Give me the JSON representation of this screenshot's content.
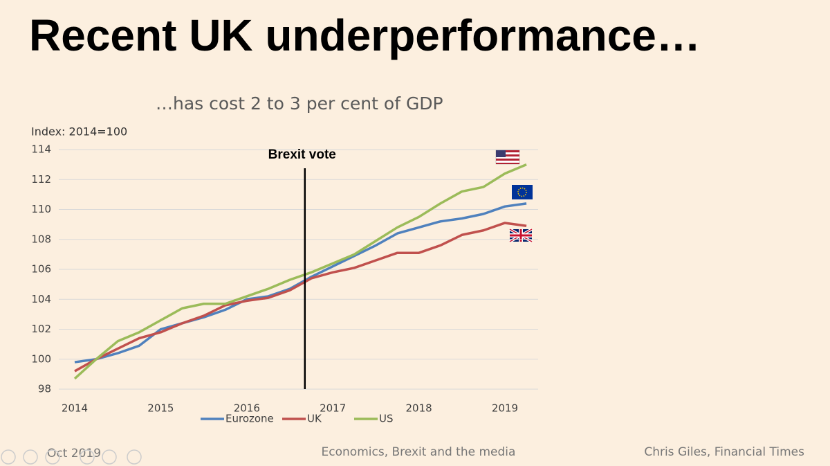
{
  "slide": {
    "title": "Recent UK underperformance…",
    "footer_left": "Oct 2019",
    "footer_center": "Economics, Brexit and the media",
    "footer_right": "Chris Giles, Financial Times"
  },
  "chart_data": {
    "type": "line",
    "title": "…has cost 2 to 3 per cent of GDP",
    "y_label": "Index: 2014=100",
    "categories": [
      "2014",
      null,
      null,
      null,
      "2015",
      null,
      null,
      null,
      "2016",
      null,
      null,
      null,
      "2017",
      null,
      null,
      null,
      "2018",
      null,
      null,
      null,
      "2019",
      null
    ],
    "series": [
      {
        "name": "Eurozone",
        "color": "#4f81bd",
        "values": [
          99.8,
          100.0,
          100.4,
          100.9,
          102.0,
          102.4,
          102.8,
          103.3,
          104.0,
          104.2,
          104.7,
          105.5,
          106.2,
          106.9,
          107.6,
          108.4,
          108.8,
          109.2,
          109.4,
          109.7,
          110.2,
          110.4
        ]
      },
      {
        "name": "UK",
        "color": "#c0504d",
        "values": [
          99.2,
          100.0,
          100.7,
          101.4,
          101.8,
          102.4,
          102.9,
          103.6,
          103.9,
          104.1,
          104.6,
          105.4,
          105.8,
          106.1,
          106.6,
          107.1,
          107.1,
          107.6,
          108.3,
          108.6,
          109.1,
          108.9
        ]
      },
      {
        "name": "US",
        "color": "#9bbb59",
        "values": [
          98.7,
          100.0,
          101.2,
          101.8,
          102.6,
          103.4,
          103.7,
          103.7,
          104.2,
          104.7,
          105.3,
          105.8,
          106.4,
          107.0,
          107.9,
          108.8,
          109.5,
          110.4,
          111.2,
          111.5,
          112.4,
          113.0
        ]
      }
    ],
    "ylim": [
      98,
      114
    ],
    "yticks": [
      98,
      100,
      102,
      104,
      106,
      108,
      110,
      112,
      114
    ],
    "grid": true,
    "annotation": {
      "text": "Brexit vote",
      "x": 10.7
    }
  }
}
